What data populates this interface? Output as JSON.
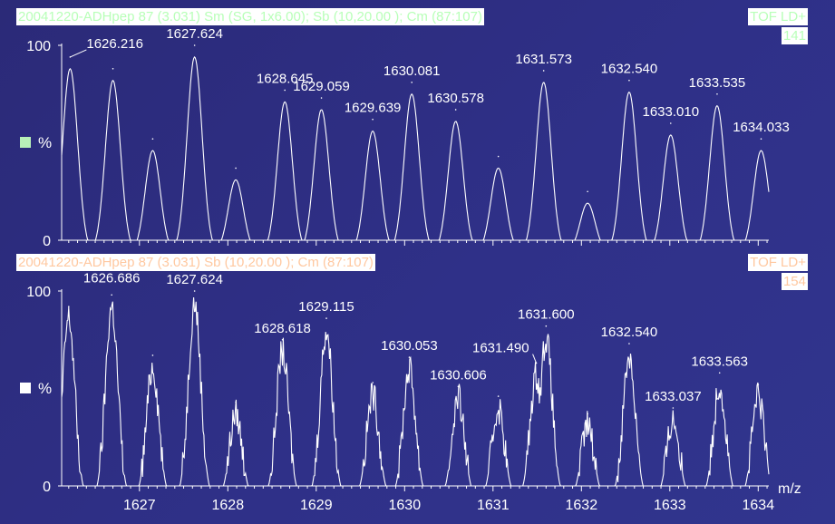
{
  "colors": {
    "top_header_text": "#b8ffb8",
    "bottom_header_text": "#ffc8a0",
    "top_swatch": "#b8f0b8",
    "bottom_swatch": "#ffffff",
    "trace": "#ffffff"
  },
  "chart_data": [
    {
      "type": "line",
      "header_left": "20041220-ADHpep  87 (3.031) Sm (SG, 1x6.00); Sb (10,20.00 ); Cm (87:107)",
      "header_right_1": "TOF LD+",
      "header_right_2": "141",
      "ylabel": "%",
      "y_ticks": [
        "100",
        "0"
      ],
      "ylim": [
        0,
        100
      ],
      "xlim": [
        1626.12,
        1634.12
      ],
      "peaks": [
        {
          "x": 1626.216,
          "y": 94,
          "label": "1626.216"
        },
        {
          "x": 1626.7,
          "y": 88,
          "label": ""
        },
        {
          "x": 1627.15,
          "y": 52,
          "label": ""
        },
        {
          "x": 1627.624,
          "y": 100,
          "label": "1627.624"
        },
        {
          "x": 1628.09,
          "y": 37,
          "label": ""
        },
        {
          "x": 1628.645,
          "y": 77,
          "label": "1628.645"
        },
        {
          "x": 1629.059,
          "y": 73,
          "label": "1629.059"
        },
        {
          "x": 1629.639,
          "y": 62,
          "label": "1629.639"
        },
        {
          "x": 1630.081,
          "y": 81,
          "label": "1630.081"
        },
        {
          "x": 1630.578,
          "y": 67,
          "label": "1630.578"
        },
        {
          "x": 1631.06,
          "y": 43,
          "label": ""
        },
        {
          "x": 1631.573,
          "y": 87,
          "label": "1631.573"
        },
        {
          "x": 1632.07,
          "y": 25,
          "label": ""
        },
        {
          "x": 1632.54,
          "y": 82,
          "label": "1632.540"
        },
        {
          "x": 1633.01,
          "y": 60,
          "label": "1633.010"
        },
        {
          "x": 1633.535,
          "y": 75,
          "label": "1633.535"
        },
        {
          "x": 1634.033,
          "y": 52,
          "label": "1634.033"
        }
      ]
    },
    {
      "type": "line",
      "header_left": "20041220-ADHpep  87 (3.031) Sb (10,20.00 ); Cm (87:107)",
      "header_right_1": "TOF LD+",
      "header_right_2": "154",
      "ylabel": "%",
      "xlabel": "m/z",
      "y_ticks": [
        "100",
        "0"
      ],
      "ylim": [
        0,
        100
      ],
      "xlim": [
        1626.12,
        1634.12
      ],
      "x_ticks": [
        "1627",
        "1628",
        "1629",
        "1630",
        "1631",
        "1632",
        "1633",
        "1634"
      ],
      "peaks": [
        {
          "x": 1626.2,
          "y": 92,
          "label": ""
        },
        {
          "x": 1626.686,
          "y": 98,
          "label": "1626.686"
        },
        {
          "x": 1627.15,
          "y": 67,
          "label": ""
        },
        {
          "x": 1627.624,
          "y": 100,
          "label": "1627.624"
        },
        {
          "x": 1628.09,
          "y": 43,
          "label": ""
        },
        {
          "x": 1628.618,
          "y": 75,
          "label": "1628.618"
        },
        {
          "x": 1629.115,
          "y": 86,
          "label": "1629.115"
        },
        {
          "x": 1629.64,
          "y": 53,
          "label": ""
        },
        {
          "x": 1630.053,
          "y": 66,
          "label": "1630.053"
        },
        {
          "x": 1630.606,
          "y": 51,
          "label": "1630.606"
        },
        {
          "x": 1631.06,
          "y": 46,
          "label": ""
        },
        {
          "x": 1631.49,
          "y": 63,
          "label": "1631.490"
        },
        {
          "x": 1631.6,
          "y": 82,
          "label": "1631.600"
        },
        {
          "x": 1632.07,
          "y": 37,
          "label": ""
        },
        {
          "x": 1632.54,
          "y": 73,
          "label": "1632.540"
        },
        {
          "x": 1633.037,
          "y": 40,
          "label": "1633.037"
        },
        {
          "x": 1633.563,
          "y": 58,
          "label": "1633.563"
        },
        {
          "x": 1634.0,
          "y": 52,
          "label": ""
        }
      ]
    }
  ]
}
